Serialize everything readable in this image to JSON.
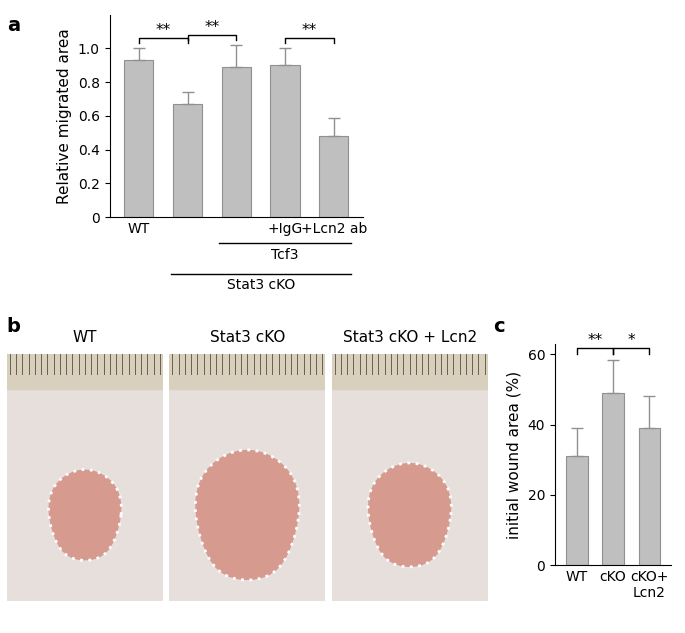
{
  "panel_labels": [
    "a",
    "b",
    "c"
  ],
  "chart_data": [
    {
      "type": "bar",
      "categories": [
        "WT",
        null,
        null,
        "+IgG",
        "+Lcn2 ab"
      ],
      "values": [
        0.93,
        0.67,
        0.89,
        0.9,
        0.48
      ],
      "errors": [
        0.07,
        0.07,
        0.13,
        0.1,
        0.11
      ],
      "color": "#bfbfbf",
      "ylabel": "Relative migrated area",
      "ylim": [
        0,
        1.2
      ],
      "yticks": [
        0,
        0.2,
        0.4,
        0.6,
        0.8,
        {
          "value": 1.0,
          "label": "1.0"
        }
      ],
      "groups": [
        {
          "label": "Tcf3",
          "span": [
            2,
            4
          ]
        },
        {
          "label": "Stat3 cKO",
          "span": [
            1,
            4
          ]
        }
      ],
      "annotations": [
        {
          "text": "**",
          "between": [
            0,
            1
          ]
        },
        {
          "text": "**",
          "between": [
            1,
            2
          ]
        },
        {
          "text": "**",
          "between": [
            3,
            4
          ]
        }
      ]
    },
    {
      "type": "bar",
      "categories": [
        "WT",
        "cKO",
        "cKO+\nLcn2"
      ],
      "values": [
        31,
        49,
        39
      ],
      "errors": [
        8,
        9.5,
        9
      ],
      "color": "#bfbfbf",
      "ylabel": "initial wound area (%)",
      "ylim": [
        0,
        63
      ],
      "yticks": [
        0,
        20,
        40,
        60
      ],
      "annotations": [
        {
          "text": "**",
          "between": [
            0,
            1
          ]
        },
        {
          "text": "*",
          "between": [
            1,
            2
          ]
        }
      ]
    }
  ],
  "images": {
    "labels": [
      "WT",
      "Stat3 cKO",
      "Stat3 cKO + Lcn2"
    ]
  }
}
